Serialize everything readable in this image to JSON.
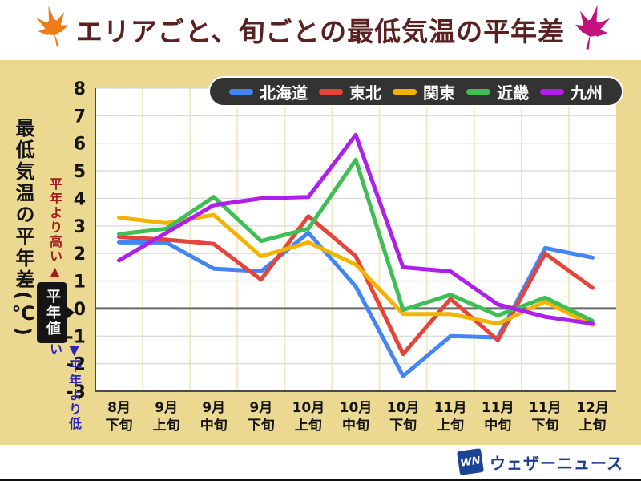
{
  "header": {
    "title": "エリアごと、旬ごとの最低気温の平年差"
  },
  "y_axis": {
    "title": "最低気温の平年差(℃)",
    "higher_label": "平年より高い",
    "higher_arrow": "▲",
    "normal_label": "平年値",
    "lower_arrow": "▼",
    "lower_label": "平年より低い"
  },
  "footer": {
    "logo_mark": "WN",
    "logo_text": "ウェザーニュース"
  },
  "colors": {
    "section_background": "#EBD992",
    "plot_background": "#FFFFFF",
    "title_text": "#5A2121",
    "higher_text": "#A21D1D",
    "lower_text": "#2A28B5",
    "legend_background": "#333333",
    "grid_horizontal": "#DBDBDB",
    "grid_vertical": "#F2E8C4",
    "zero_line": "#6B6B6B",
    "axis_line": "#4A4A4A",
    "tick_text": "#141414",
    "leaf_left": "#EE7D18",
    "leaf_right": "#C3117E",
    "logo_blue": "#1B4396"
  },
  "chart_data": {
    "type": "line",
    "title": "エリアごと、旬ごとの最低気温の平年差",
    "ylabel": "最低気温の平年差(℃)",
    "xlabel": "",
    "ylim": [
      -3,
      8
    ],
    "yticks": [
      8,
      7,
      6,
      5,
      4,
      3,
      2,
      1,
      0,
      -1,
      -2,
      -3
    ],
    "grid": true,
    "legend_position": "top",
    "categories": [
      "8月下旬",
      "9月上旬",
      "9月中旬",
      "9月下旬",
      "10月上旬",
      "10月中旬",
      "10月下旬",
      "11月上旬",
      "11月中旬",
      "11月下旬",
      "12月上旬"
    ],
    "series": [
      {
        "name": "北海道",
        "color": "#4285F4",
        "values": [
          2.4,
          2.4,
          1.45,
          1.35,
          2.75,
          0.8,
          -2.45,
          -1.0,
          -1.05,
          2.2,
          1.85
        ]
      },
      {
        "name": "東北",
        "color": "#E4443A",
        "values": [
          2.6,
          2.5,
          2.35,
          1.05,
          3.35,
          1.9,
          -1.65,
          0.35,
          -1.15,
          2.0,
          0.75
        ]
      },
      {
        "name": "関東",
        "color": "#F5B301",
        "values": [
          3.3,
          3.1,
          3.4,
          1.9,
          2.4,
          1.6,
          -0.2,
          -0.2,
          -0.55,
          0.25,
          -0.6
        ]
      },
      {
        "name": "近畿",
        "color": "#3FBE54",
        "values": [
          2.7,
          2.9,
          4.05,
          2.45,
          2.9,
          5.4,
          -0.05,
          0.5,
          -0.25,
          0.4,
          -0.45
        ]
      },
      {
        "name": "九州",
        "color": "#AE1FE9",
        "values": [
          1.75,
          2.75,
          3.75,
          4.0,
          4.05,
          6.3,
          1.5,
          1.35,
          0.15,
          -0.3,
          -0.55
        ]
      }
    ]
  }
}
